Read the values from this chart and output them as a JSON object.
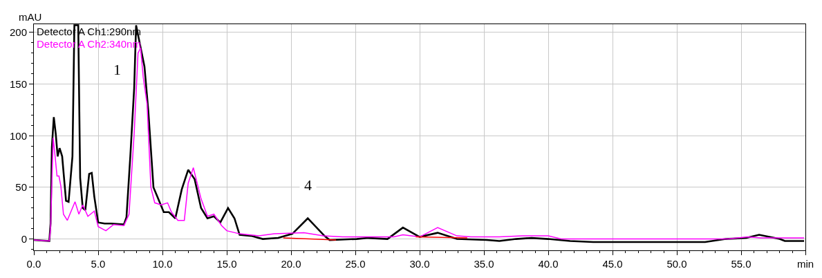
{
  "chart_data": {
    "type": "line",
    "ylabel": "mAU",
    "xlim": [
      0,
      60
    ],
    "ylim": [
      -11,
      208
    ],
    "xticks": [
      {
        "value": 0,
        "label": "0.0"
      },
      {
        "value": 5,
        "label": "5.0"
      },
      {
        "value": 10,
        "label": "10.0"
      },
      {
        "value": 15,
        "label": "15.0"
      },
      {
        "value": 20,
        "label": "20.0"
      },
      {
        "value": 25,
        "label": "25.0"
      },
      {
        "value": 30,
        "label": "30.0"
      },
      {
        "value": 35,
        "label": "35.0"
      },
      {
        "value": 40,
        "label": "40.0"
      },
      {
        "value": 45,
        "label": "45.0"
      },
      {
        "value": 50,
        "label": "50.0"
      },
      {
        "value": 55,
        "label": "55.0"
      },
      {
        "value": 60,
        "label": "min"
      }
    ],
    "yticks": [
      0,
      50,
      100,
      150,
      200
    ],
    "grid": true,
    "legend": "top left",
    "marker": "none",
    "line_style": "solid",
    "series": [
      {
        "name": "Detector A Ch1:290nm",
        "color": "#000000",
        "x": [
          0,
          1.2,
          1.3,
          1.4,
          1.55,
          1.7,
          1.85,
          2.0,
          2.2,
          2.5,
          2.7,
          3.0,
          3.15,
          3.3,
          3.45,
          3.6,
          3.8,
          4.0,
          4.3,
          4.5,
          4.7,
          5.0,
          5.5,
          6.0,
          7.0,
          7.2,
          7.5,
          7.8,
          7.95,
          8.6,
          8.9,
          9.3,
          9.6,
          10.1,
          10.5,
          11.0,
          11.5,
          12.0,
          12.5,
          13.0,
          13.5,
          14.0,
          14.5,
          15.1,
          15.6,
          16.0,
          16.9,
          17.8,
          19.0,
          20.1,
          21.3,
          22.6,
          23.0,
          25.1,
          26.0,
          27.5,
          28.7,
          30.0,
          31.4,
          32.9,
          35.2,
          36.2,
          37.5,
          38.7,
          40.0,
          41.7,
          43.5,
          52.2,
          53.8,
          55.4,
          56.4,
          58.0,
          58.4,
          59.9
        ],
        "values": [
          -1,
          -2,
          15,
          89,
          118,
          102,
          80,
          88,
          80,
          37,
          36,
          80,
          207,
          207,
          207,
          59,
          30,
          28,
          63,
          64,
          41,
          16,
          15,
          15,
          14,
          21,
          80,
          146,
          207,
          167,
          124,
          50,
          41,
          26,
          26,
          20,
          48,
          67,
          58,
          30,
          20,
          22,
          16,
          30,
          20,
          4,
          3,
          0,
          1,
          5,
          20,
          3,
          -1,
          0,
          1,
          0,
          11,
          2,
          6,
          0,
          -1,
          -2,
          0,
          1,
          0,
          -2,
          -3,
          -3,
          0,
          1,
          4,
          0,
          -2,
          -2
        ]
      },
      {
        "name": "Detector A Ch2:340nm",
        "color": "#ff00ff",
        "x": [
          0,
          1.2,
          1.3,
          1.5,
          1.65,
          1.8,
          1.95,
          2.1,
          2.3,
          2.6,
          3.0,
          3.2,
          3.5,
          3.8,
          4.2,
          4.7,
          5.0,
          5.6,
          6.2,
          7.0,
          7.4,
          7.8,
          8.1,
          8.3,
          8.5,
          8.8,
          9.1,
          9.4,
          9.9,
          10.4,
          10.7,
          11.2,
          11.7,
          12.0,
          12.4,
          13.0,
          13.5,
          14.0,
          14.6,
          15.0,
          16.0,
          17.5,
          18.7,
          21.0,
          22.5,
          24.0,
          28.0,
          28.7,
          30.0,
          31.4,
          32.9,
          34.0,
          36.2,
          38.0,
          40.0,
          41.0,
          54.0,
          55.5,
          56.5,
          59.9
        ],
        "values": [
          -1,
          -2,
          10,
          98,
          80,
          61,
          61,
          51,
          24,
          18,
          30,
          36,
          24,
          33,
          22,
          27,
          12,
          8,
          14,
          13,
          24,
          102,
          180,
          185,
          157,
          131,
          50,
          35,
          33,
          35,
          26,
          18,
          18,
          54,
          69,
          39,
          22,
          24,
          13,
          8,
          5,
          3,
          5,
          6,
          3,
          2,
          2,
          4,
          2,
          11,
          3,
          2,
          2,
          3,
          3,
          0,
          0,
          2,
          1,
          1
        ]
      },
      {
        "color": "#ff0000",
        "x": [
          19.4,
          23.5
        ],
        "values": [
          1,
          -1
        ]
      },
      {
        "color": "#ff0000",
        "x": [
          29.7,
          33.7
        ],
        "values": [
          2,
          1
        ]
      }
    ],
    "annotations": [
      "1",
      "4"
    ]
  }
}
